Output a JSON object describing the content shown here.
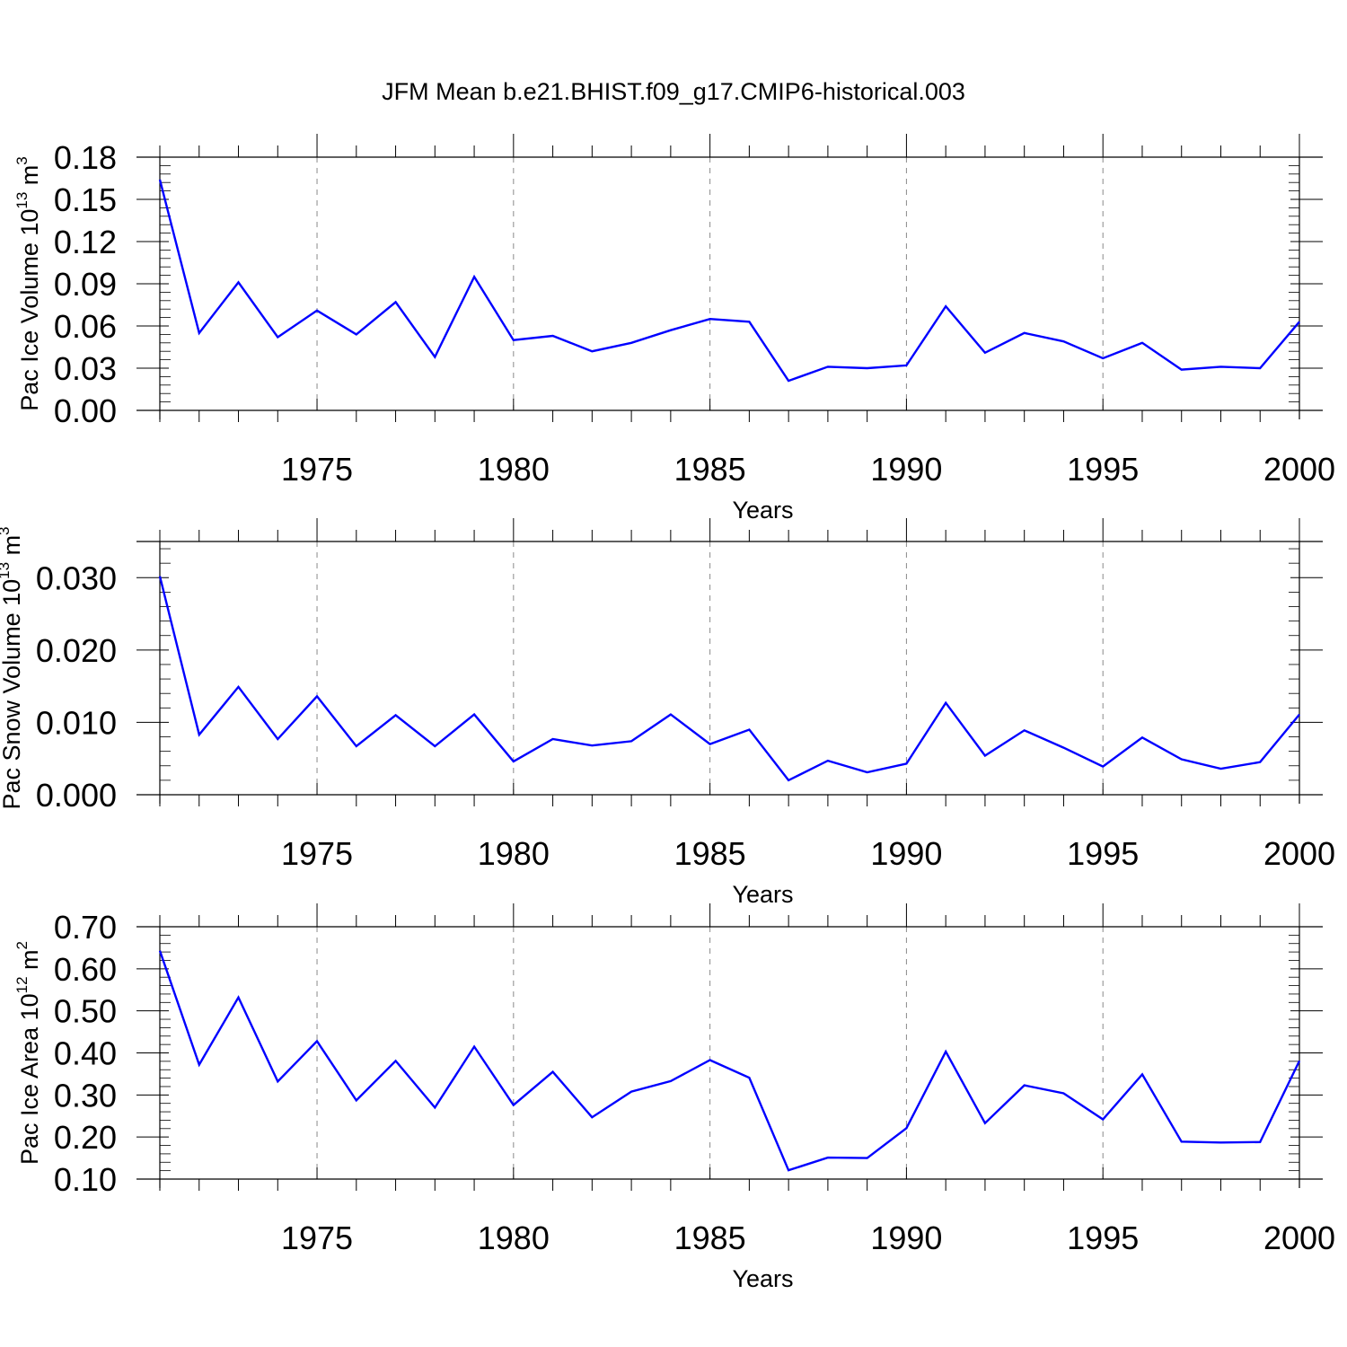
{
  "title": "JFM Mean b.e21.BHIST.f09_g17.CMIP6-historical.003",
  "line_color": "#0000ff",
  "chart_data": [
    {
      "type": "line",
      "xlabel": "Years",
      "ylabel": {
        "base": "Pac Ice Volume 10",
        "exp": "13",
        "unit": " m",
        "unit_exp": "3"
      },
      "xlim": [
        1971,
        2000
      ],
      "ylim": [
        0.0,
        0.18
      ],
      "xticks": [
        1975,
        1980,
        1985,
        1990,
        1995,
        2000
      ],
      "yticks": [
        "0.00",
        "0.03",
        "0.06",
        "0.09",
        "0.12",
        "0.15",
        "0.18"
      ],
      "series": [
        {
          "name": "Pac Ice Volume",
          "x": [
            1971,
            1972,
            1973,
            1974,
            1975,
            1976,
            1977,
            1978,
            1979,
            1980,
            1981,
            1982,
            1983,
            1984,
            1985,
            1986,
            1987,
            1988,
            1989,
            1990,
            1991,
            1992,
            1993,
            1994,
            1995,
            1996,
            1997,
            1998,
            1999,
            2000
          ],
          "values": [
            0.164,
            0.055,
            0.091,
            0.052,
            0.071,
            0.054,
            0.077,
            0.038,
            0.095,
            0.05,
            0.053,
            0.042,
            0.048,
            0.057,
            0.065,
            0.063,
            0.021,
            0.031,
            0.03,
            0.032,
            0.074,
            0.041,
            0.055,
            0.049,
            0.037,
            0.048,
            0.029,
            0.031,
            0.03,
            0.063
          ]
        }
      ]
    },
    {
      "type": "line",
      "xlabel": "Years",
      "ylabel": {
        "base": "Pac Snow Volume 10",
        "exp": "13",
        "unit": " m",
        "unit_exp": "3"
      },
      "xlim": [
        1971,
        2000
      ],
      "ylim": [
        0.0,
        0.035
      ],
      "xticks": [
        1975,
        1980,
        1985,
        1990,
        1995,
        2000
      ],
      "yticks": [
        "0.000",
        "0.010",
        "0.020",
        "0.030"
      ],
      "series": [
        {
          "name": "Pac Snow Volume",
          "x": [
            1971,
            1972,
            1973,
            1974,
            1975,
            1976,
            1977,
            1978,
            1979,
            1980,
            1981,
            1982,
            1983,
            1984,
            1985,
            1986,
            1987,
            1988,
            1989,
            1990,
            1991,
            1992,
            1993,
            1994,
            1995,
            1996,
            1997,
            1998,
            1999,
            2000
          ],
          "values": [
            0.0302,
            0.0083,
            0.0149,
            0.0077,
            0.0136,
            0.0067,
            0.011,
            0.0067,
            0.0111,
            0.0046,
            0.0077,
            0.0068,
            0.0074,
            0.0111,
            0.007,
            0.009,
            0.002,
            0.0047,
            0.0031,
            0.0043,
            0.0127,
            0.0054,
            0.0089,
            0.0065,
            0.0039,
            0.0079,
            0.0049,
            0.0036,
            0.0045,
            0.0111
          ]
        }
      ]
    },
    {
      "type": "line",
      "xlabel": "Years",
      "ylabel": {
        "base": "Pac Ice Area 10",
        "exp": "12",
        "unit": " m",
        "unit_exp": "2"
      },
      "xlim": [
        1971,
        2000
      ],
      "ylim": [
        0.1,
        0.7
      ],
      "xticks": [
        1975,
        1980,
        1985,
        1990,
        1995,
        2000
      ],
      "yticks": [
        "0.10",
        "0.20",
        "0.30",
        "0.40",
        "0.50",
        "0.60",
        "0.70"
      ],
      "series": [
        {
          "name": "Pac Ice Area",
          "x": [
            1971,
            1972,
            1973,
            1974,
            1975,
            1976,
            1977,
            1978,
            1979,
            1980,
            1981,
            1982,
            1983,
            1984,
            1985,
            1986,
            1987,
            1988,
            1989,
            1990,
            1991,
            1992,
            1993,
            1994,
            1995,
            1996,
            1997,
            1998,
            1999,
            2000
          ],
          "values": [
            0.643,
            0.372,
            0.532,
            0.332,
            0.428,
            0.287,
            0.381,
            0.27,
            0.415,
            0.276,
            0.355,
            0.247,
            0.308,
            0.333,
            0.383,
            0.341,
            0.121,
            0.151,
            0.15,
            0.221,
            0.403,
            0.233,
            0.323,
            0.304,
            0.242,
            0.349,
            0.189,
            0.187,
            0.188,
            0.381
          ]
        }
      ]
    }
  ]
}
